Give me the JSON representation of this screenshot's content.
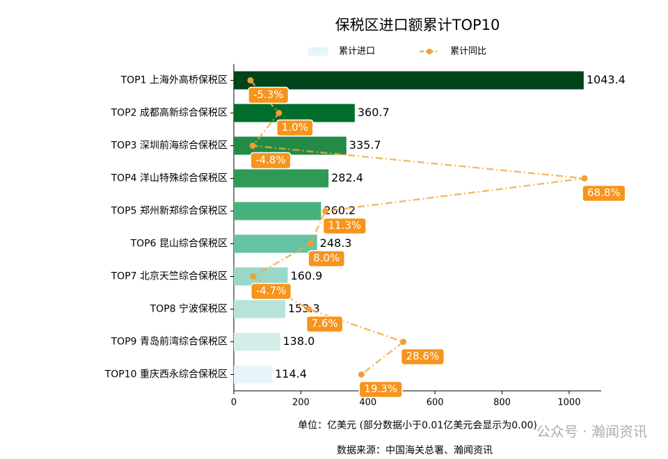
{
  "chart_data": {
    "type": "bar-line",
    "orientation": "horizontal",
    "title": "保税区进口额累计TOP10",
    "categories": [
      "TOP1 上海外高桥保税区",
      "TOP2 成都高新综合保税区",
      "TOP3 深圳前海综合保税区",
      "TOP4 洋山特殊综合保税区",
      "TOP5 郑州新郑综合保税区",
      "TOP6 昆山综合保税区",
      "TOP7 北京天竺综合保税区",
      "TOP8 宁波保税区",
      "TOP9 青岛前湾综合保税区",
      "TOP10 重庆西永综合保税区"
    ],
    "series": [
      {
        "name": "累计进口",
        "type": "bar",
        "color": "#e5f5f9",
        "colors": [
          "#00441b",
          "#006d2c",
          "#238b45",
          "#2f9a55",
          "#48b27c",
          "#66c2a4",
          "#99d8c9",
          "#b8e3da",
          "#d4ede9",
          "#e5f5f9"
        ],
        "values": [
          1043.4,
          360.7,
          335.7,
          282.4,
          260.2,
          248.3,
          160.9,
          153.3,
          138.0,
          114.4
        ],
        "value_labels": [
          "1043.4",
          "360.7",
          "335.7",
          "282.4",
          "260.2",
          "248.3",
          "160.9",
          "153.3",
          "138.0",
          "114.4"
        ]
      },
      {
        "name": "累计同比",
        "type": "line",
        "axis": "x2",
        "color": "#f5a742",
        "values": [
          -5.3,
          1.0,
          -4.8,
          68.8,
          11.3,
          8.0,
          -4.7,
          7.6,
          28.6,
          19.3
        ],
        "value_labels": [
          "-5.3%",
          "1.0%",
          "-4.8%",
          "68.8%",
          "11.3%",
          "8.0%",
          "-4.7%",
          "7.6%",
          "28.6%",
          "19.3%"
        ]
      }
    ],
    "xlim": [
      0,
      1095.6
    ],
    "xticks": [
      0,
      200,
      400,
      600,
      800,
      1000
    ],
    "x2lim": [
      -9.0,
      72.5
    ],
    "xlabel": "单位：亿美元  (部分数据小于0.01亿美元会显示为0.00)",
    "source": "数据来源：中国海关总署、瀚闻资讯",
    "watermark": "公众号 · 瀚闻资讯",
    "legend": "top"
  }
}
